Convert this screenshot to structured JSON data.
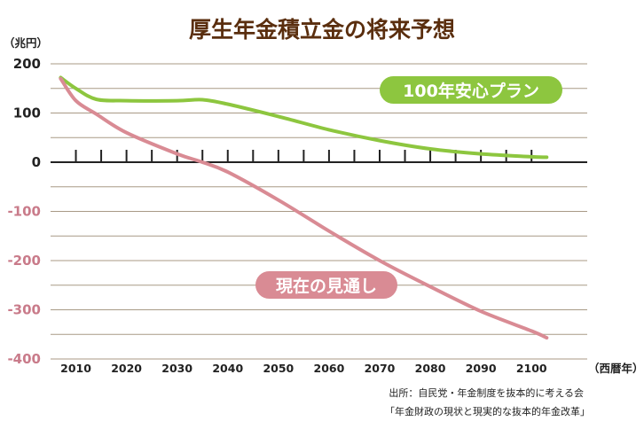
{
  "chart_data": {
    "type": "line",
    "title": "厚生年金積立金の将来予想",
    "ylabel": "（兆円）",
    "xlabel": "（西暦年）",
    "ylim": [
      -400,
      200
    ],
    "xlim": [
      2005,
      2111
    ],
    "y_ticks": [
      200,
      100,
      0,
      -100,
      -200,
      -300,
      -400
    ],
    "y_tick_labels": [
      "200",
      "100",
      "0",
      "-100",
      "-200",
      "-300",
      "-400"
    ],
    "x_ticks": [
      2010,
      2020,
      2030,
      2040,
      2050,
      2060,
      2070,
      2080,
      2090,
      2100
    ],
    "x_tick_labels": [
      "2010",
      "2020",
      "2030",
      "2040",
      "2050",
      "2060",
      "2070",
      "2080",
      "2090",
      "2100"
    ],
    "grid": true,
    "series": [
      {
        "name": "100年安心プラン",
        "color": "#8dc63f",
        "x": [
          2007,
          2010,
          2014,
          2020,
          2030,
          2035,
          2040,
          2050,
          2060,
          2070,
          2080,
          2090,
          2100,
          2103
        ],
        "values": [
          172,
          150,
          128,
          125,
          125,
          127,
          118,
          93,
          66,
          44,
          27,
          17,
          11,
          10
        ]
      },
      {
        "name": "現在の見通し",
        "color": "#d98b94",
        "x": [
          2007,
          2010,
          2014,
          2020,
          2030,
          2035,
          2040,
          2050,
          2060,
          2070,
          2080,
          2090,
          2100,
          2103
        ],
        "values": [
          170,
          125,
          98,
          60,
          17,
          0,
          -20,
          -77,
          -140,
          -200,
          -253,
          -303,
          -343,
          -357
        ]
      }
    ]
  },
  "badges": {
    "plan": "100年安心プラン",
    "current": "現在の見通し"
  },
  "source": {
    "line1": "出所：自民党・年金制度を抜本的に考える会",
    "line2": "「年金財政の現状と現実的な抜本的年金改革」"
  },
  "colors": {
    "title": "#5a2e0e",
    "positive_tick": "#222222",
    "negative_tick": "#c97b8a",
    "grid": "#a89a86",
    "axis": "#222222"
  }
}
